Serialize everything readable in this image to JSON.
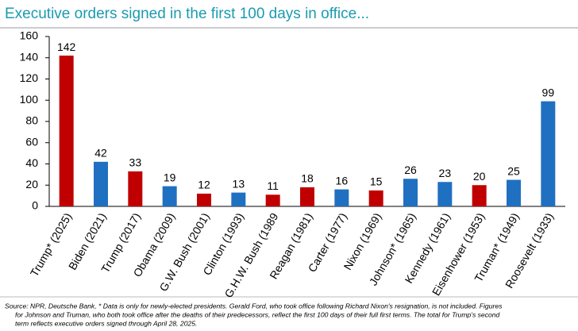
{
  "chart_data": {
    "type": "bar",
    "title": "Executive orders signed in the first 100 days in office...",
    "categories": [
      "Trump* (2025)",
      "Biden (2021)",
      "Trump (2017)",
      "Obama (2009)",
      "G.W. Bush (2001)",
      "Clinton (1993)",
      "G.H.W. Bush (1989",
      "Reagan (1981)",
      "Carter (1977)",
      "Nixon (1969)",
      "Johnson* (1965)",
      "Kennedy (1961)",
      "Eisenhower (1953)",
      "Truman* (1949)",
      "Roosevelt (1933)"
    ],
    "values": [
      142,
      42,
      33,
      19,
      12,
      13,
      11,
      18,
      16,
      15,
      26,
      23,
      20,
      25,
      99
    ],
    "colors": [
      "#c00000",
      "#1f70c1",
      "#c00000",
      "#1f70c1",
      "#c00000",
      "#1f70c1",
      "#c00000",
      "#c00000",
      "#1f70c1",
      "#c00000",
      "#1f70c1",
      "#1f70c1",
      "#c00000",
      "#1f70c1",
      "#1f70c1"
    ],
    "ylim": [
      0,
      160
    ],
    "yticks": [
      0,
      20,
      40,
      60,
      80,
      100,
      120,
      140,
      160
    ],
    "grid": false,
    "source": [
      "Source: NPR, Deutsche Bank, * Data is only for newly-elected presidents. Gerald Ford, who took office following Richard Nixon's resignation, is not included. Figures",
      "for Johnson and Truman, who both took office after the deaths of their predecessors, reflect the first 100 days of their full first terms. The total for Trump's second",
      "term reflects executive orders signed through April 28, 2025."
    ]
  }
}
